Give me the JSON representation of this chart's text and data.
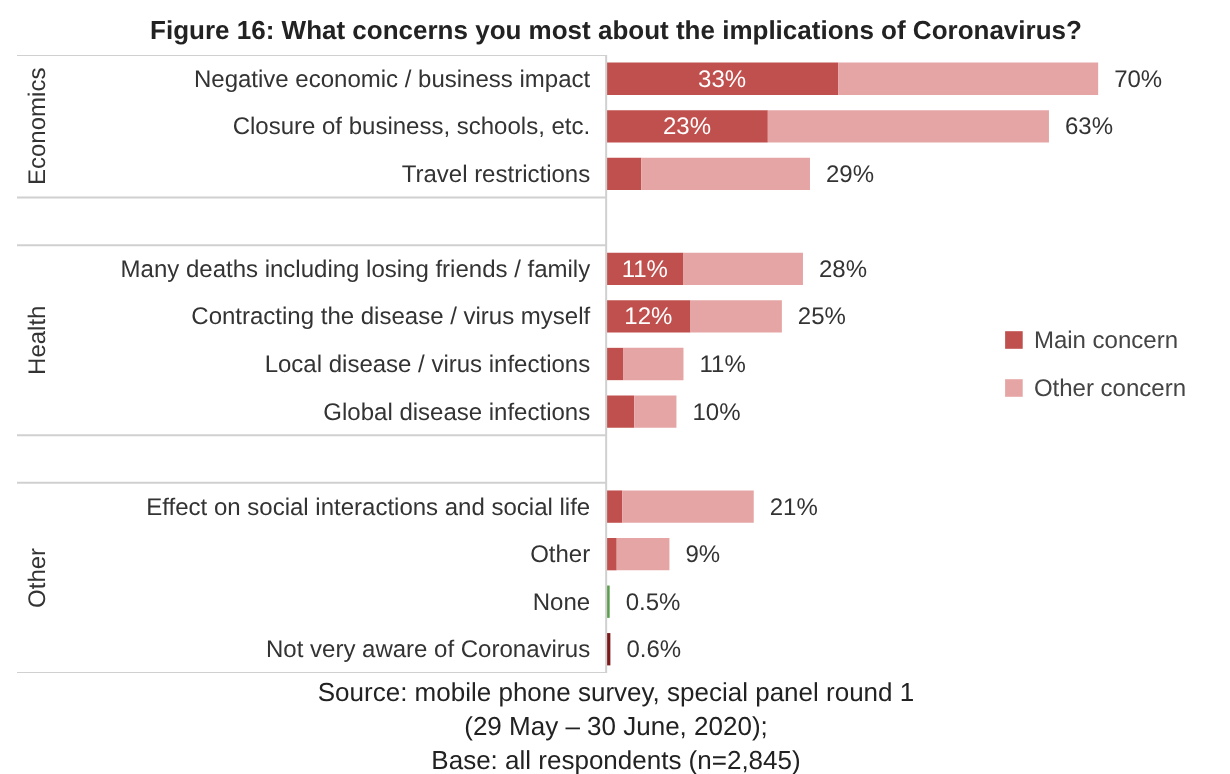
{
  "chart_data": {
    "type": "bar",
    "orientation": "horizontal",
    "stacked": true,
    "title": "Figure 16: What concerns you most about the implications of Coronavirus?",
    "categories": [
      "Negative economic / business impact",
      "Closure of business, schools, etc.",
      "Travel restrictions",
      null,
      "Many deaths including losing friends / family",
      "Contracting the disease / virus myself",
      "Local disease / virus infections",
      "Global disease infections",
      null,
      "Effect on social interactions and social life",
      "Other",
      "None",
      "Not very aware of Coronavirus"
    ],
    "series": [
      {
        "name": "Main concern",
        "color": "#c0504d",
        "values": [
          33,
          23,
          5,
          null,
          11,
          12,
          2.4,
          4,
          null,
          2.3,
          1.5,
          0.5,
          0.6
        ],
        "colors": [
          null,
          null,
          null,
          null,
          null,
          null,
          null,
          null,
          null,
          null,
          null,
          "#5a9e4b",
          "#7b1a1a"
        ],
        "value_labels": [
          "33%",
          "23%",
          null,
          null,
          "11%",
          "12%",
          null,
          null,
          null,
          null,
          null,
          null,
          null
        ]
      },
      {
        "name": "Other concern",
        "color": "#e6a5a5",
        "values": [
          37,
          40,
          24,
          null,
          17,
          13,
          8.6,
          6,
          null,
          18.7,
          7.5,
          null,
          null
        ]
      }
    ],
    "totals": [
      "70%",
      "63%",
      "29%",
      null,
      "28%",
      "25%",
      "11%",
      "10%",
      null,
      "21%",
      "9%",
      "0.5%",
      "0.6%"
    ],
    "legend": "right",
    "tick_labels": "y",
    "annotations": [
      "Economics",
      "Health",
      "Other",
      "Source: mobile phone survey, special panel round 1",
      "(29 May – 30 June, 2020);",
      "Base: all respondents (n=2,845)"
    ]
  }
}
